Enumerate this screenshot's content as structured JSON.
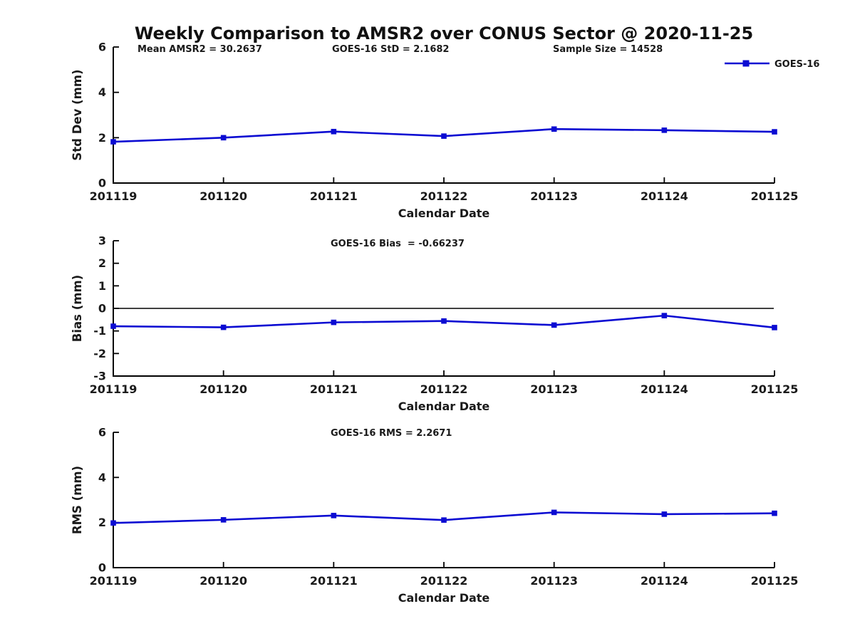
{
  "figure": {
    "title": "Weekly Comparison to AMSR2 over CONUS Sector @ 2020-11-25",
    "legend_label": "GOES-16"
  },
  "colors": {
    "series": "#0b0bd2",
    "text": "#1a1a1a",
    "axis": "#000000",
    "zero_line": "#000000"
  },
  "chart_data": [
    {
      "type": "line",
      "panel": "std-dev",
      "annotations": [
        "Mean AMSR2 = 30.2637",
        "GOES-16 StD = 2.1682",
        "Sample Size = 14528"
      ],
      "categories": [
        "201119",
        "201120",
        "201121",
        "201122",
        "201123",
        "201124",
        "201125"
      ],
      "series": [
        {
          "name": "GOES-16",
          "values": [
            1.82,
            2.0,
            2.27,
            2.07,
            2.38,
            2.33,
            2.26
          ]
        }
      ],
      "xlabel": "Calendar Date",
      "ylabel": "Std Dev (mm)",
      "ylim": [
        0,
        6
      ],
      "yticks": [
        0,
        2,
        4,
        6
      ],
      "zero_line": false,
      "legend": true,
      "legend_position": "top-right-outside",
      "grid": false
    },
    {
      "type": "line",
      "panel": "bias",
      "annotations": [
        "GOES-16 Bias  = -0.66237"
      ],
      "categories": [
        "201119",
        "201120",
        "201121",
        "201122",
        "201123",
        "201124",
        "201125"
      ],
      "series": [
        {
          "name": "GOES-16",
          "values": [
            -0.79,
            -0.84,
            -0.62,
            -0.56,
            -0.74,
            -0.32,
            -0.85
          ]
        }
      ],
      "xlabel": "Calendar Date",
      "ylabel": "Bias (mm)",
      "ylim": [
        -3,
        3
      ],
      "yticks": [
        -3,
        -2,
        -1,
        0,
        1,
        2,
        3
      ],
      "zero_line": true,
      "legend": false,
      "grid": false
    },
    {
      "type": "line",
      "panel": "rms",
      "annotations": [
        "GOES-16 RMS = 2.2671"
      ],
      "categories": [
        "201119",
        "201120",
        "201121",
        "201122",
        "201123",
        "201124",
        "201125"
      ],
      "series": [
        {
          "name": "GOES-16",
          "values": [
            1.98,
            2.12,
            2.31,
            2.11,
            2.45,
            2.37,
            2.41
          ]
        }
      ],
      "xlabel": "Calendar Date",
      "ylabel": "RMS (mm)",
      "ylim": [
        0,
        6
      ],
      "yticks": [
        0,
        2,
        4,
        6
      ],
      "zero_line": false,
      "legend": false,
      "grid": false
    }
  ]
}
